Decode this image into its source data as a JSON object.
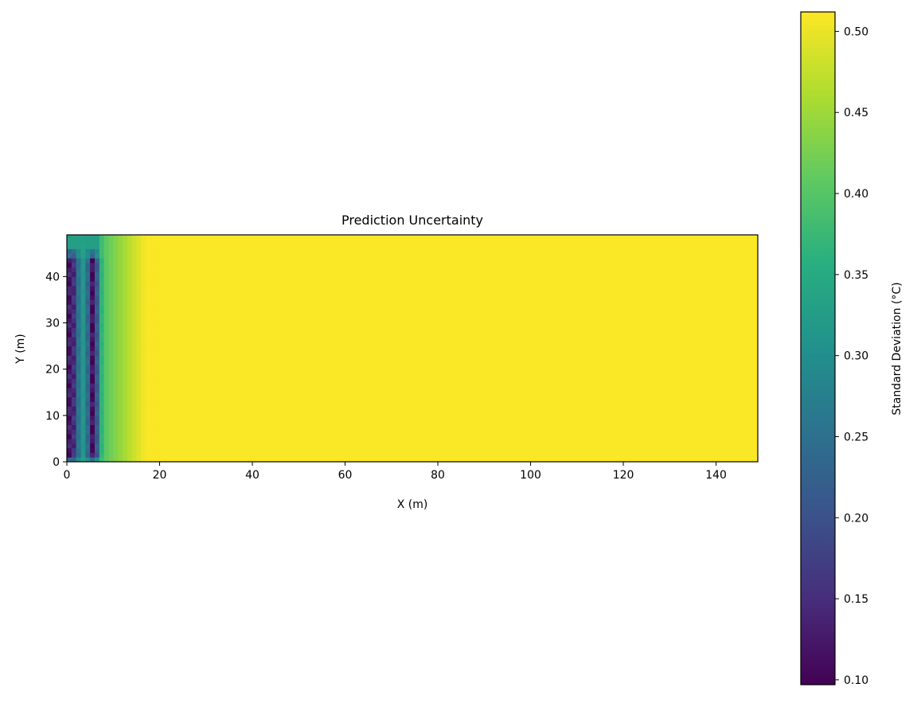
{
  "chart_data": {
    "type": "heatmap",
    "title": "Prediction Uncertainty",
    "xlabel": "X (m)",
    "ylabel": "Y (m)",
    "xlim": [
      0,
      149
    ],
    "ylim": [
      0,
      49
    ],
    "xticks": [
      0,
      20,
      40,
      60,
      80,
      100,
      120,
      140
    ],
    "yticks": [
      0,
      10,
      20,
      30,
      40
    ],
    "colorbar": {
      "label": "Standard Deviation (°C)",
      "colormap": "viridis",
      "range": [
        0.097,
        0.512
      ],
      "ticks": [
        "0.10",
        "0.15",
        "0.20",
        "0.25",
        "0.30",
        "0.35",
        "0.40",
        "0.45",
        "0.50"
      ]
    },
    "grid": false,
    "field": {
      "description_values": "near-uniform 0.51 everywhere except x < 15 m",
      "background_value": 0.51,
      "low_bands": [
        {
          "x_center": 0.8,
          "width": 1.2,
          "min_value": 0.12
        },
        {
          "x_center": 5.6,
          "width": 0.9,
          "min_value": 0.11
        }
      ],
      "transition_end_x": 17
    }
  }
}
